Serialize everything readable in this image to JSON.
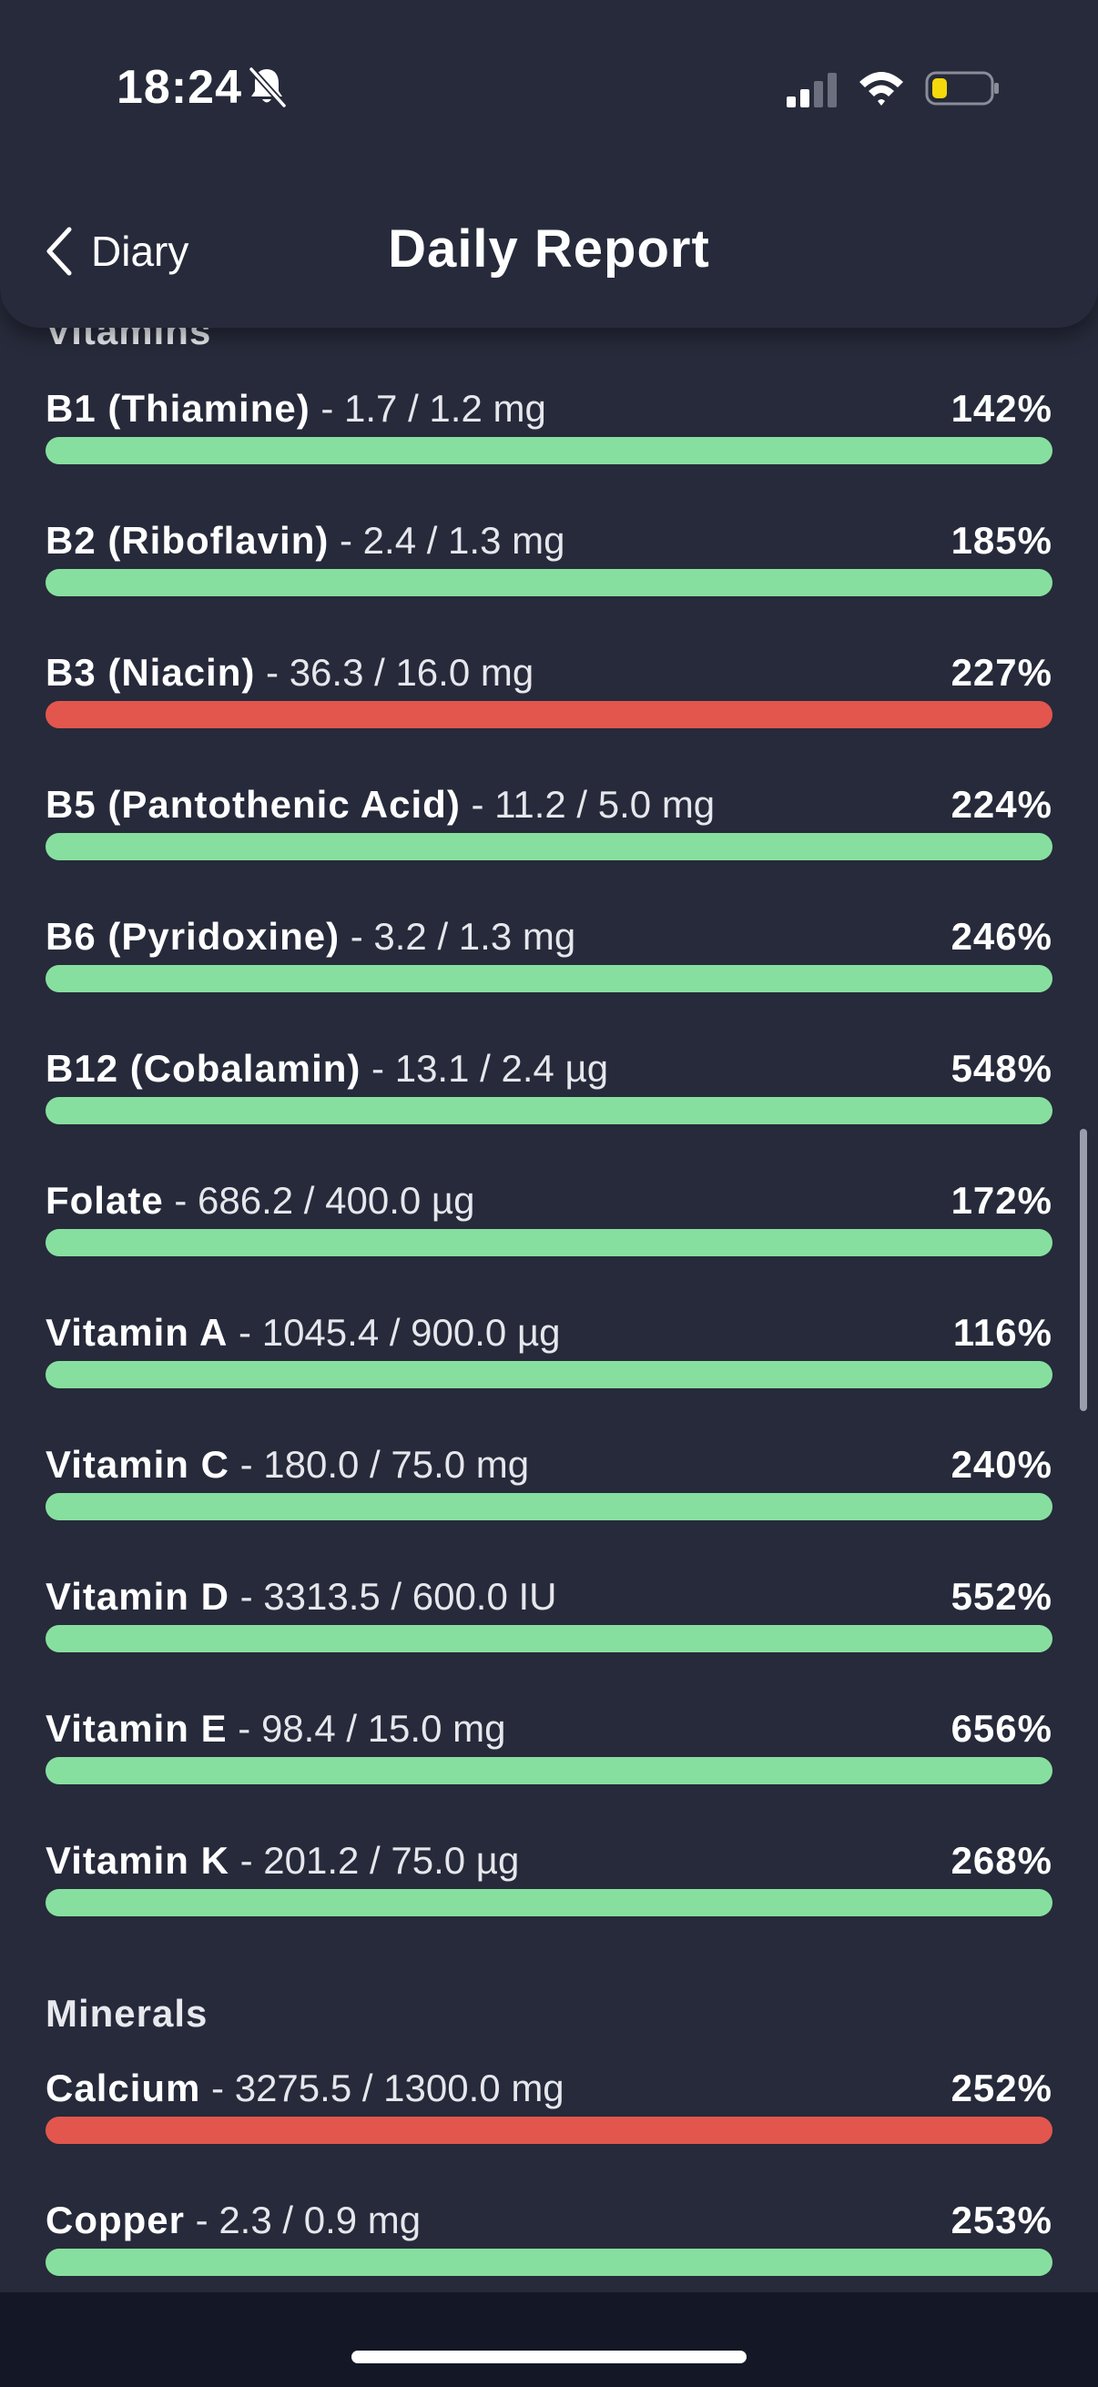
{
  "status_bar": {
    "time": "18:24",
    "icons": [
      "bell-slash-icon",
      "cellular-signal-icon",
      "wifi-icon",
      "battery-icon"
    ]
  },
  "header": {
    "back_label": "Diary",
    "title": "Daily Report"
  },
  "colors": {
    "background": "#262a3a",
    "ok": "#87df9f",
    "over": "#e2564e"
  },
  "sections": {
    "vitamins": {
      "heading": "Vitamins",
      "items": [
        {
          "name": "B1 (Thiamine)",
          "amount": " - 1.7 / 1.2 mg",
          "percent": "142%",
          "status": "ok"
        },
        {
          "name": "B2 (Riboflavin)",
          "amount": " - 2.4 / 1.3 mg",
          "percent": "185%",
          "status": "ok"
        },
        {
          "name": "B3 (Niacin)",
          "amount": " - 36.3 / 16.0 mg",
          "percent": "227%",
          "status": "over"
        },
        {
          "name": "B5 (Pantothenic Acid)",
          "amount": " - 11.2 / 5.0 mg",
          "percent": "224%",
          "status": "ok"
        },
        {
          "name": "B6 (Pyridoxine)",
          "amount": " - 3.2 / 1.3 mg",
          "percent": "246%",
          "status": "ok"
        },
        {
          "name": "B12 (Cobalamin)",
          "amount": " - 13.1 / 2.4 µg",
          "percent": "548%",
          "status": "ok"
        },
        {
          "name": "Folate",
          "amount": " - 686.2 / 400.0 µg",
          "percent": "172%",
          "status": "ok"
        },
        {
          "name": "Vitamin A",
          "amount": " - 1045.4 / 900.0 µg",
          "percent": "116%",
          "status": "ok"
        },
        {
          "name": "Vitamin C",
          "amount": " - 180.0 / 75.0 mg",
          "percent": "240%",
          "status": "ok"
        },
        {
          "name": "Vitamin D",
          "amount": " - 3313.5 / 600.0 IU",
          "percent": "552%",
          "status": "ok"
        },
        {
          "name": "Vitamin E",
          "amount": " - 98.4 / 15.0 mg",
          "percent": "656%",
          "status": "ok"
        },
        {
          "name": "Vitamin K",
          "amount": " - 201.2 / 75.0 µg",
          "percent": "268%",
          "status": "ok"
        }
      ]
    },
    "minerals": {
      "heading": "Minerals",
      "items": [
        {
          "name": "Calcium",
          "amount": " - 3275.5 / 1300.0 mg",
          "percent": "252%",
          "status": "over"
        },
        {
          "name": "Copper",
          "amount": " - 2.3 / 0.9 mg",
          "percent": "253%",
          "status": "ok"
        }
      ]
    }
  }
}
